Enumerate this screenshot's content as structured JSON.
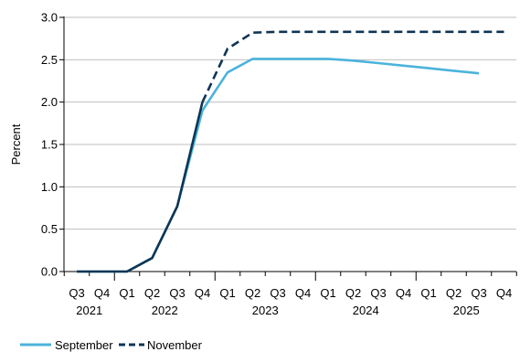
{
  "chart_data": {
    "type": "line",
    "ylabel": "Percent",
    "ylim": [
      0,
      3.0
    ],
    "yticks": [
      "0.0",
      "0.5",
      "1.0",
      "1.5",
      "2.0",
      "2.5",
      "3.0"
    ],
    "quarters": [
      "Q3",
      "Q4",
      "Q1",
      "Q2",
      "Q3",
      "Q4",
      "Q1",
      "Q2",
      "Q3",
      "Q4",
      "Q1",
      "Q2",
      "Q3",
      "Q4",
      "Q1",
      "Q2",
      "Q3",
      "Q4"
    ],
    "years": [
      {
        "label": "2021",
        "quarter_index": 0.5
      },
      {
        "label": "2022",
        "quarter_index": 3.5
      },
      {
        "label": "2023",
        "quarter_index": 7.5
      },
      {
        "label": "2024",
        "quarter_index": 11.5
      },
      {
        "label": "2025",
        "quarter_index": 15.5
      }
    ],
    "grid": true,
    "legend_position": "bottom-left",
    "series": [
      {
        "name": "September",
        "color": "#4bb3dc",
        "style": "solid",
        "points": [
          [
            0,
            0.0
          ],
          [
            1,
            0.0
          ],
          [
            2,
            0.0
          ],
          [
            3,
            0.16
          ],
          [
            4,
            0.77
          ],
          [
            5,
            1.9
          ],
          [
            6,
            2.35
          ],
          [
            7,
            2.51
          ],
          [
            8,
            2.51
          ],
          [
            9,
            2.51
          ],
          [
            10,
            2.51
          ],
          [
            11,
            2.49
          ],
          [
            12,
            2.46
          ],
          [
            13,
            2.43
          ],
          [
            14,
            2.4
          ],
          [
            15,
            2.37
          ],
          [
            16,
            2.34
          ]
        ]
      },
      {
        "name": "November",
        "color": "#0f3554",
        "style": "mixed",
        "points": [
          [
            0,
            0.0
          ],
          [
            1,
            0.0
          ],
          [
            2,
            0.0
          ],
          [
            3,
            0.16
          ],
          [
            4,
            0.77
          ],
          [
            5,
            2.0
          ],
          [
            6,
            2.63
          ],
          [
            7,
            2.82
          ],
          [
            8,
            2.83
          ],
          [
            9,
            2.83
          ],
          [
            10,
            2.83
          ],
          [
            11,
            2.83
          ],
          [
            12,
            2.83
          ],
          [
            13,
            2.83
          ],
          [
            14,
            2.83
          ],
          [
            15,
            2.83
          ],
          [
            16,
            2.83
          ],
          [
            17,
            2.83
          ]
        ],
        "solid_until_index": 5
      }
    ]
  }
}
